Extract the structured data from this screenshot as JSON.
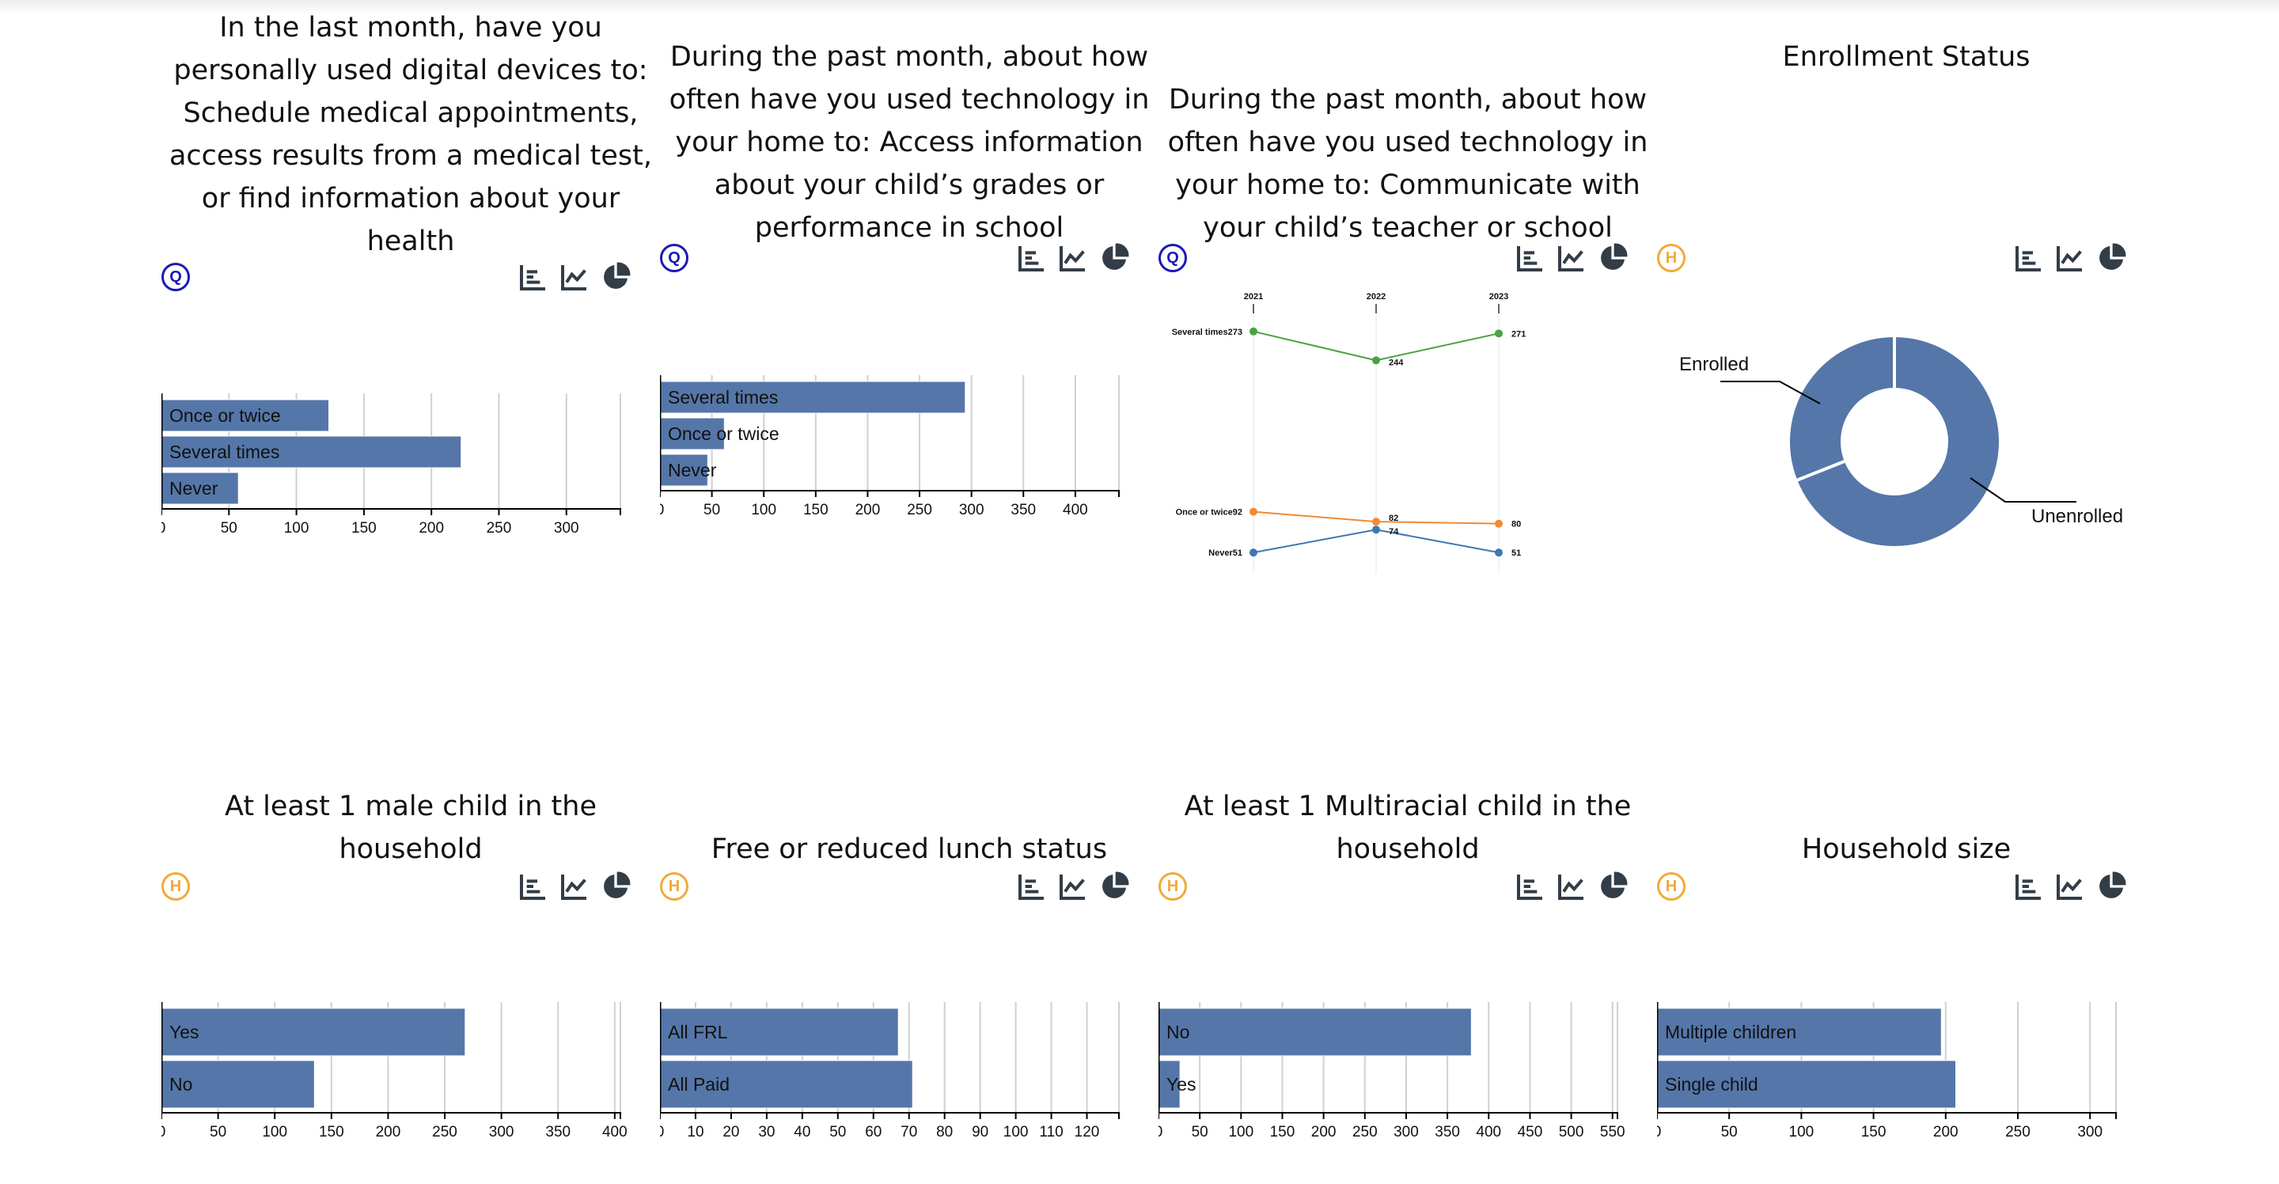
{
  "colors": {
    "bar": "#5576a8",
    "grid": "#d0d0d0",
    "q_badge": "#1919b8",
    "h_badge": "#f2a93b",
    "icon": "#333d47"
  },
  "panels": [
    {
      "title": "In the last month, have you personally used digital devices to: Schedule medical appointments, access results from a medical test, or find information about your health",
      "badge": "Q",
      "badge_type": "q",
      "icons": [
        "bar-chart-icon",
        "line-chart-icon",
        "pie-chart-icon"
      ]
    },
    {
      "title": "During the past month, about how often have you used technology in your home to: Access information about your child’s grades or performance in school",
      "badge": "Q",
      "badge_type": "q",
      "icons": [
        "bar-chart-icon",
        "line-chart-icon",
        "pie-chart-icon"
      ]
    },
    {
      "title": "During the past month, about how often have you used technology in your home to: Communicate with your child’s teacher or school",
      "badge": "Q",
      "badge_type": "q",
      "icons": [
        "bar-chart-icon",
        "line-chart-icon",
        "pie-chart-icon"
      ]
    },
    {
      "title": "Enrollment Status",
      "badge": "H",
      "badge_type": "h",
      "icons": [
        "bar-chart-icon",
        "line-chart-icon",
        "pie-chart-icon"
      ]
    },
    {
      "title": "At least 1 male child in the household",
      "badge": "H",
      "badge_type": "h",
      "icons": [
        "bar-chart-icon",
        "line-chart-icon",
        "pie-chart-icon"
      ]
    },
    {
      "title": "Free or reduced lunch status",
      "badge": "H",
      "badge_type": "h",
      "icons": [
        "bar-chart-icon",
        "line-chart-icon",
        "pie-chart-icon"
      ]
    },
    {
      "title": "At least 1 Multiracial child in the household",
      "badge": "H",
      "badge_type": "h",
      "icons": [
        "bar-chart-icon",
        "line-chart-icon",
        "pie-chart-icon"
      ]
    },
    {
      "title": "Household size",
      "badge": "H",
      "badge_type": "h",
      "icons": [
        "bar-chart-icon",
        "line-chart-icon",
        "pie-chart-icon"
      ]
    }
  ],
  "chart_data": [
    {
      "type": "bar",
      "orientation": "horizontal",
      "categories": [
        "Once or twice",
        "Several times",
        "Never"
      ],
      "values": [
        124,
        222,
        57
      ],
      "xlim": [
        0,
        340
      ],
      "xticks": [
        0,
        50,
        100,
        150,
        200,
        250,
        300
      ],
      "grid": true
    },
    {
      "type": "bar",
      "orientation": "horizontal",
      "categories": [
        "Several times",
        "Once or twice",
        "Never"
      ],
      "values": [
        294,
        62,
        46
      ],
      "xlim": [
        0,
        442
      ],
      "xticks": [
        0,
        50,
        100,
        150,
        200,
        250,
        300,
        350,
        400
      ],
      "grid": true
    },
    {
      "type": "line",
      "x": [
        "2021",
        "2022",
        "2023"
      ],
      "series": [
        {
          "name": "Several times",
          "values": [
            273,
            244,
            271
          ],
          "color": "#4aa243"
        },
        {
          "name": "Once or twice",
          "values": [
            92,
            82,
            80
          ],
          "color": "#f08a35"
        },
        {
          "name": "Never",
          "values": [
            51,
            74,
            51
          ],
          "color": "#3f77b0"
        }
      ]
    },
    {
      "type": "pie",
      "donut": true,
      "labels": [
        "Enrolled",
        "Unenrolled"
      ],
      "values": [
        31,
        69
      ],
      "colors": [
        "#5576a8",
        "#5576a8"
      ]
    },
    {
      "type": "bar",
      "orientation": "horizontal",
      "categories": [
        "Yes",
        "No"
      ],
      "values": [
        268,
        135
      ],
      "xlim": [
        0,
        405
      ],
      "xticks": [
        0,
        50,
        100,
        150,
        200,
        250,
        300,
        350,
        400
      ],
      "grid": true
    },
    {
      "type": "bar",
      "orientation": "horizontal",
      "categories": [
        "All FRL",
        "All Paid"
      ],
      "values": [
        67,
        71
      ],
      "xlim": [
        0,
        129
      ],
      "xticks": [
        0,
        10,
        20,
        30,
        40,
        50,
        60,
        70,
        80,
        90,
        100,
        110,
        120
      ],
      "grid": true
    },
    {
      "type": "bar",
      "orientation": "horizontal",
      "categories": [
        "No",
        "Yes"
      ],
      "values": [
        379,
        26
      ],
      "xlim": [
        0,
        556
      ],
      "xticks": [
        0,
        50,
        100,
        150,
        200,
        250,
        300,
        350,
        400,
        450,
        500,
        550
      ],
      "grid": true
    },
    {
      "type": "bar",
      "orientation": "horizontal",
      "categories": [
        "Multiple children",
        "Single child"
      ],
      "values": [
        197,
        207
      ],
      "xlim": [
        0,
        318
      ],
      "xticks": [
        0,
        50,
        100,
        150,
        200,
        250,
        300
      ],
      "grid": true
    }
  ]
}
